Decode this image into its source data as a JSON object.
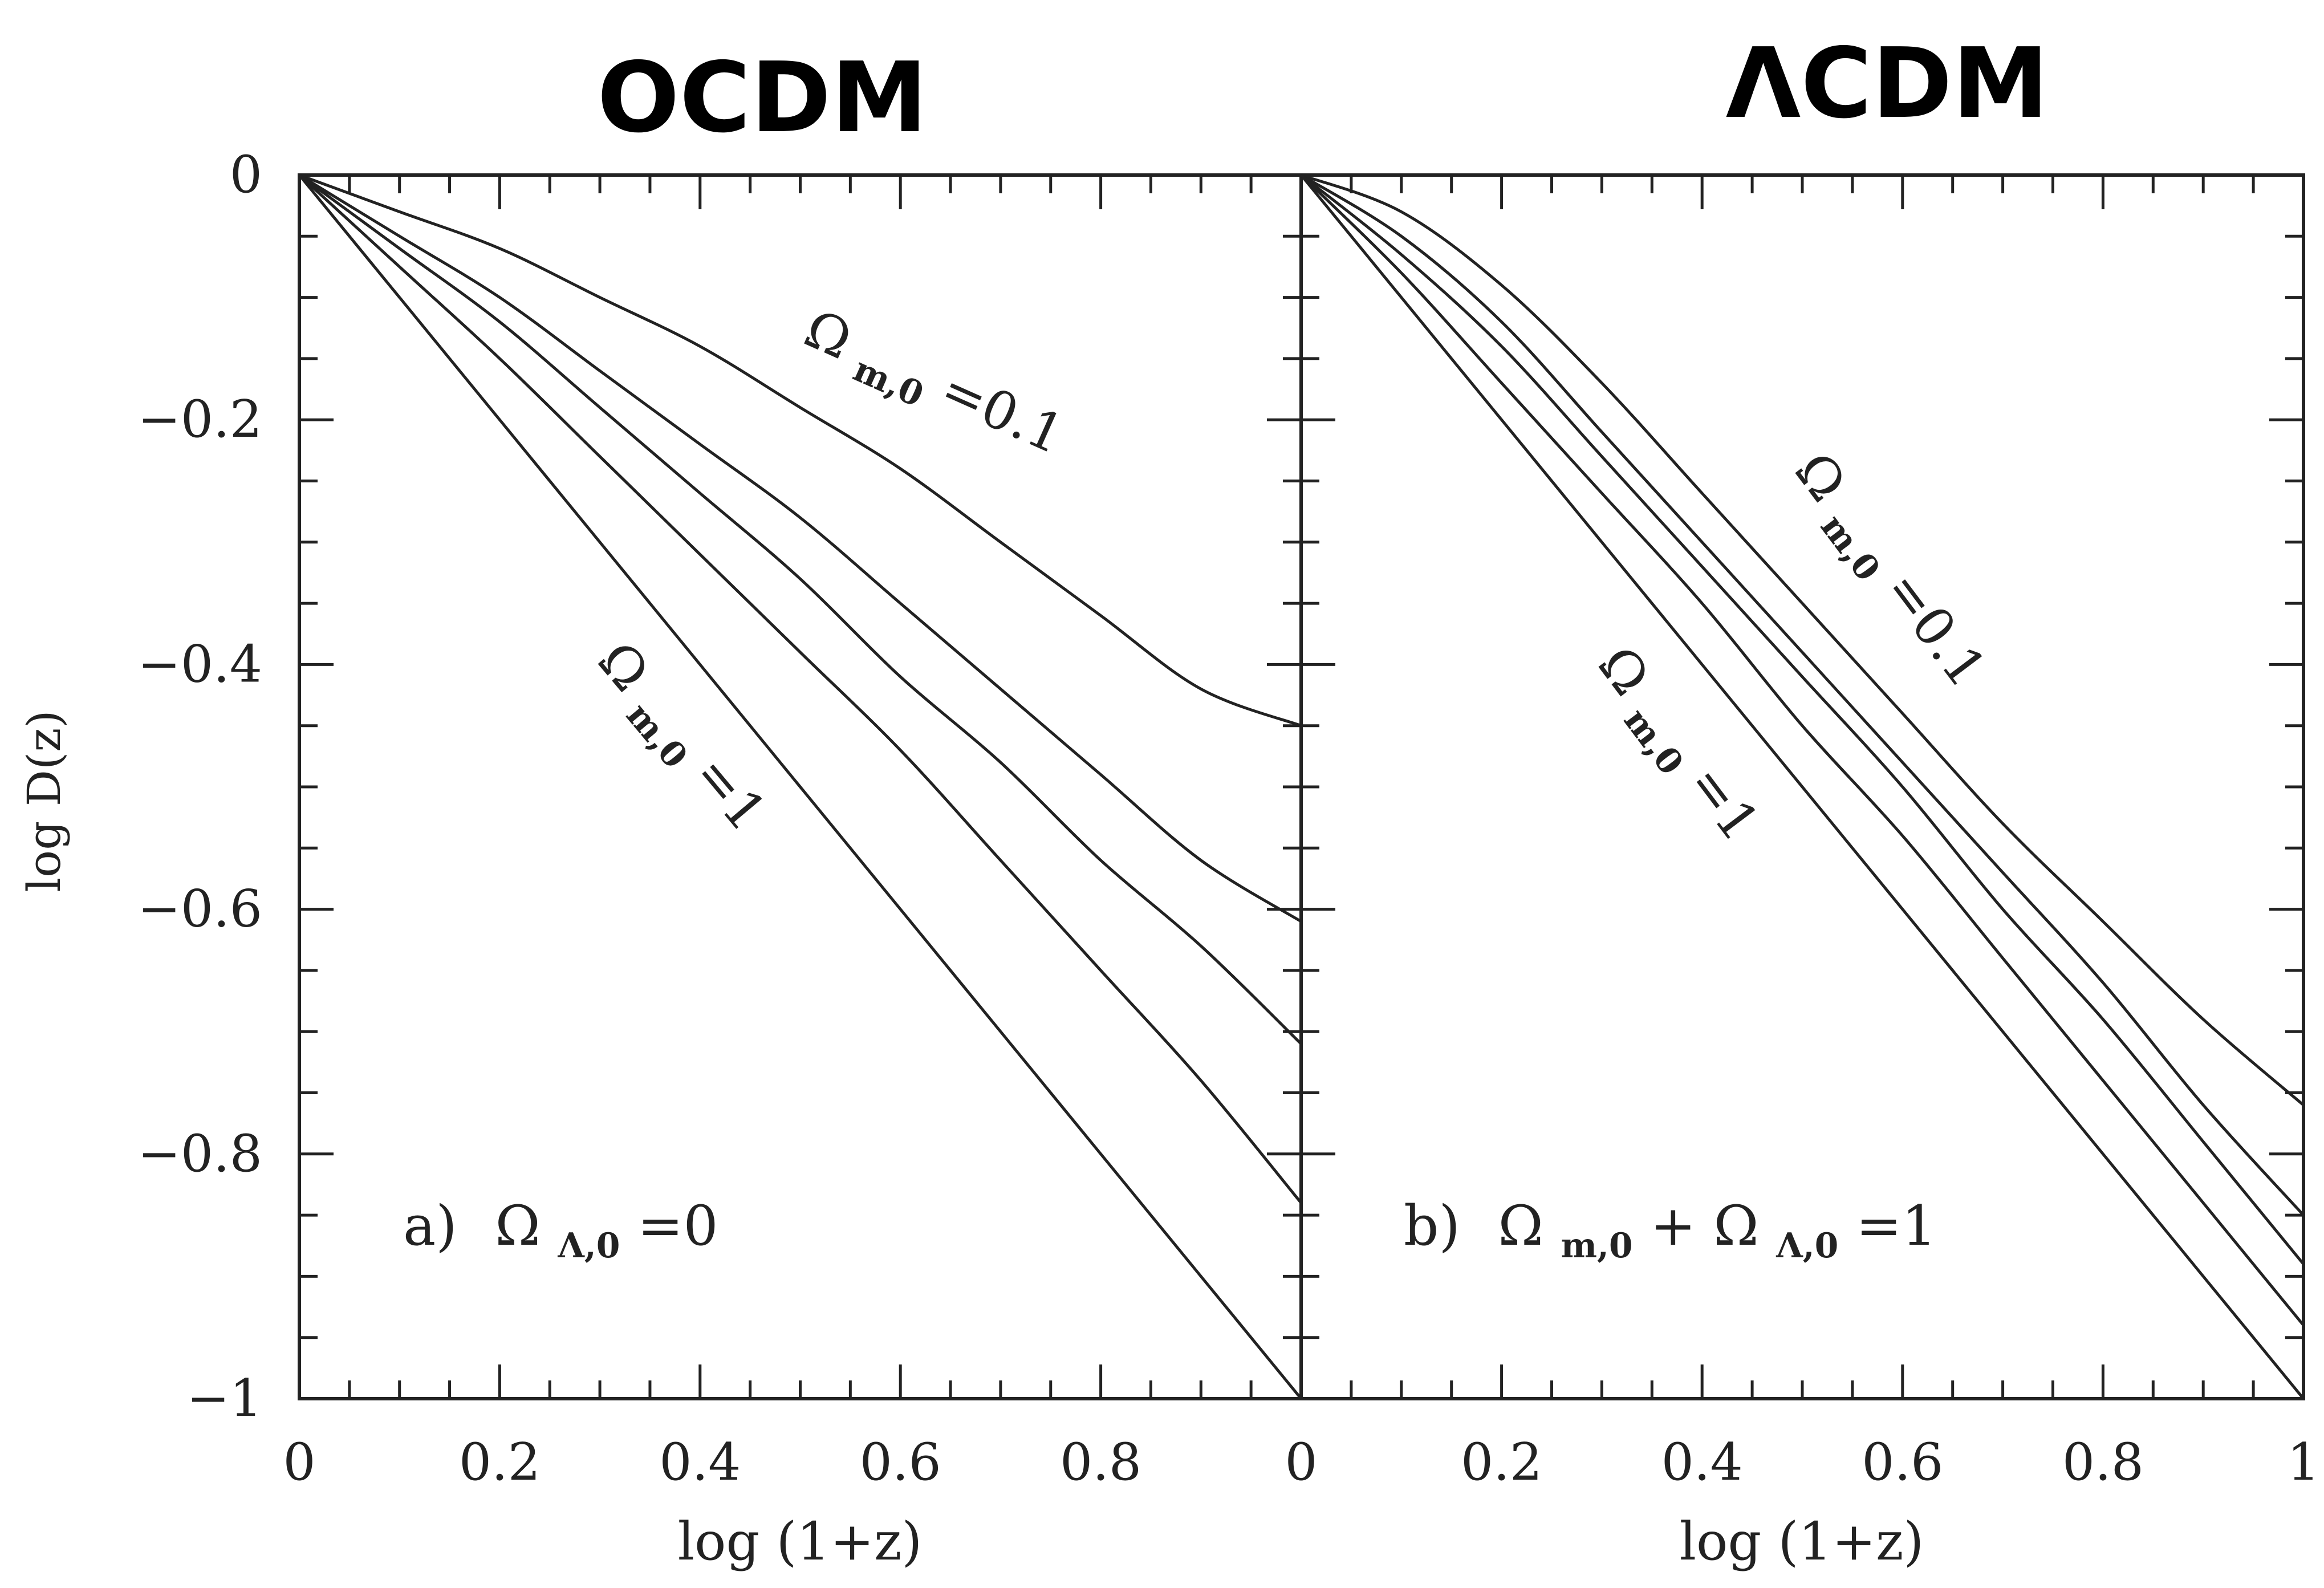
{
  "chart_data": [
    {
      "type": "line",
      "handwritten_title": "OCDM",
      "panel_label": "a)",
      "panel_condition_parts": [
        "Ω",
        "Λ,0",
        "=0"
      ],
      "xlabel": "log  (1+z)",
      "ylabel": "log  D(z)",
      "xlim": [
        0,
        1
      ],
      "ylim": [
        -1,
        0
      ],
      "x_tick_labels": [
        "0",
        "0.2",
        "0.4",
        "0.6",
        "0.8"
      ],
      "y_tick_labels": [
        "0",
        "−0.2",
        "−0.4",
        "−0.6",
        "−0.8",
        "−1"
      ],
      "curve_labels": [
        {
          "parts": [
            "Ω",
            "m,0",
            "=0.1"
          ]
        },
        {
          "parts": [
            "Ω",
            "m,0",
            "=1"
          ]
        }
      ],
      "series": [
        {
          "x": [
            0,
            0.1,
            0.2,
            0.3,
            0.4,
            0.5,
            0.6,
            0.7,
            0.8,
            0.9,
            1.0
          ],
          "values": [
            0,
            -0.03,
            -0.06,
            -0.1,
            -0.14,
            -0.19,
            -0.24,
            -0.3,
            -0.36,
            -0.42,
            -0.45
          ]
        },
        {
          "x": [
            0,
            0.1,
            0.2,
            0.3,
            0.4,
            0.5,
            0.6,
            0.7,
            0.8,
            0.9,
            1.0
          ],
          "values": [
            0,
            -0.05,
            -0.1,
            -0.16,
            -0.22,
            -0.28,
            -0.35,
            -0.42,
            -0.49,
            -0.56,
            -0.61
          ]
        },
        {
          "x": [
            0,
            0.1,
            0.2,
            0.3,
            0.4,
            0.5,
            0.6,
            0.7,
            0.8,
            0.9,
            1.0
          ],
          "values": [
            0,
            -0.06,
            -0.12,
            -0.19,
            -0.26,
            -0.33,
            -0.41,
            -0.48,
            -0.56,
            -0.63,
            -0.71
          ]
        },
        {
          "x": [
            0,
            0.1,
            0.2,
            0.3,
            0.4,
            0.5,
            0.6,
            0.7,
            0.8,
            0.9,
            1.0
          ],
          "values": [
            0,
            -0.075,
            -0.15,
            -0.23,
            -0.31,
            -0.39,
            -0.47,
            -0.56,
            -0.65,
            -0.74,
            -0.84
          ]
        },
        {
          "x": [
            0,
            0.1,
            0.2,
            0.3,
            0.4,
            0.5,
            0.6,
            0.7,
            0.8,
            0.9,
            1.0
          ],
          "values": [
            0,
            -0.1,
            -0.2,
            -0.3,
            -0.4,
            -0.5,
            -0.6,
            -0.7,
            -0.8,
            -0.9,
            -1.0
          ]
        }
      ]
    },
    {
      "type": "line",
      "handwritten_title": "ΛCDM",
      "panel_label": "b)",
      "panel_condition_parts": [
        "Ω",
        "m,0",
        "+",
        "Ω",
        "Λ,0",
        "=1"
      ],
      "xlabel": "log  (1+z)",
      "ylabel": "",
      "xlim": [
        0,
        1
      ],
      "ylim": [
        -1,
        0
      ],
      "x_tick_labels": [
        "0",
        "0.2",
        "0.4",
        "0.6",
        "0.8",
        "1"
      ],
      "y_tick_labels": [],
      "curve_labels": [
        {
          "parts": [
            "Ω",
            "m,0",
            "=0.1"
          ]
        },
        {
          "parts": [
            "Ω",
            "m,0",
            "=1"
          ]
        }
      ],
      "series": [
        {
          "x": [
            0,
            0.1,
            0.2,
            0.3,
            0.4,
            0.5,
            0.6,
            0.7,
            0.8,
            0.9,
            1.0
          ],
          "values": [
            0,
            -0.03,
            -0.09,
            -0.17,
            -0.26,
            -0.35,
            -0.44,
            -0.53,
            -0.61,
            -0.69,
            -0.76
          ]
        },
        {
          "x": [
            0,
            0.1,
            0.2,
            0.3,
            0.4,
            0.5,
            0.6,
            0.7,
            0.8,
            0.9,
            1.0
          ],
          "values": [
            0,
            -0.05,
            -0.12,
            -0.21,
            -0.3,
            -0.39,
            -0.48,
            -0.57,
            -0.66,
            -0.76,
            -0.85
          ]
        },
        {
          "x": [
            0,
            0.1,
            0.2,
            0.3,
            0.4,
            0.5,
            0.6,
            0.7,
            0.8,
            0.9,
            1.0
          ],
          "values": [
            0,
            -0.065,
            -0.14,
            -0.23,
            -0.32,
            -0.41,
            -0.5,
            -0.6,
            -0.69,
            -0.79,
            -0.89
          ]
        },
        {
          "x": [
            0,
            0.1,
            0.2,
            0.3,
            0.4,
            0.5,
            0.6,
            0.7,
            0.8,
            0.9,
            1.0
          ],
          "values": [
            0,
            -0.08,
            -0.17,
            -0.26,
            -0.35,
            -0.45,
            -0.54,
            -0.64,
            -0.74,
            -0.84,
            -0.94
          ]
        },
        {
          "x": [
            0,
            0.1,
            0.2,
            0.3,
            0.4,
            0.5,
            0.6,
            0.7,
            0.8,
            0.9,
            1.0
          ],
          "values": [
            0,
            -0.1,
            -0.2,
            -0.3,
            -0.4,
            -0.5,
            -0.6,
            -0.7,
            -0.8,
            -0.9,
            -1.0
          ]
        }
      ]
    }
  ]
}
